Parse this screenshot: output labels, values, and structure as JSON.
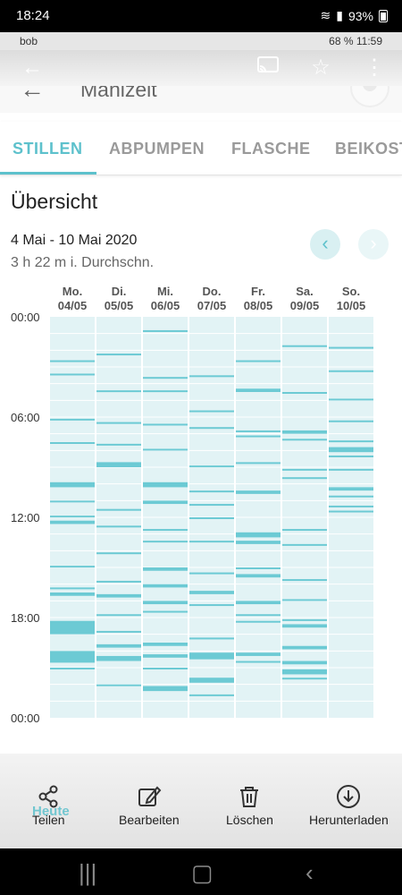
{
  "system_status": {
    "time": "18:24",
    "battery": "93%"
  },
  "inner_status": {
    "left": "bob",
    "right": "68 % 11:59"
  },
  "header": {
    "title": "Mahlzeit"
  },
  "tabs": [
    {
      "label": "STILLEN",
      "active": true
    },
    {
      "label": "ABPUMPEN",
      "active": false
    },
    {
      "label": "FLASCHE",
      "active": false
    },
    {
      "label": "BEIKOST",
      "active": false
    }
  ],
  "overview": {
    "title": "Übersicht",
    "date_range": "4 Mai - 10 Mai 2020",
    "average": "3 h 22 m i. Durchschn."
  },
  "chart_data": {
    "type": "timeline",
    "y_ticks": [
      "00:00",
      "06:00",
      "12:00",
      "18:00",
      "00:00"
    ],
    "days": [
      {
        "weekday": "Mo.",
        "date": "04/05",
        "sessions": [
          [
            2.6,
            2.6
          ],
          [
            3.4,
            3.5
          ],
          [
            6.1,
            6.2
          ],
          [
            7.5,
            7.6
          ],
          [
            9.9,
            10.2
          ],
          [
            11.0,
            11.1
          ],
          [
            11.9,
            12.0
          ],
          [
            12.2,
            12.4
          ],
          [
            14.9,
            15.0
          ],
          [
            16.2,
            16.3
          ],
          [
            16.5,
            16.7
          ],
          [
            18.2,
            19.0
          ],
          [
            20.0,
            20.7
          ],
          [
            21.0,
            21.1
          ]
        ]
      },
      {
        "weekday": "Di.",
        "date": "05/05",
        "sessions": [
          [
            2.2,
            2.3
          ],
          [
            4.4,
            4.5
          ],
          [
            6.3,
            6.4
          ],
          [
            7.6,
            7.7
          ],
          [
            8.7,
            9.0
          ],
          [
            11.5,
            11.6
          ],
          [
            12.5,
            12.6
          ],
          [
            14.1,
            14.2
          ],
          [
            15.8,
            15.9
          ],
          [
            16.6,
            16.8
          ],
          [
            17.8,
            17.9
          ],
          [
            18.8,
            18.9
          ],
          [
            19.6,
            19.8
          ],
          [
            20.3,
            20.6
          ],
          [
            22.0,
            22.1
          ]
        ]
      },
      {
        "weekday": "Mi.",
        "date": "06/05",
        "sessions": [
          [
            0.8,
            0.9
          ],
          [
            3.6,
            3.7
          ],
          [
            4.4,
            4.5
          ],
          [
            6.4,
            6.5
          ],
          [
            7.9,
            8.0
          ],
          [
            9.9,
            10.2
          ],
          [
            11.0,
            11.2
          ],
          [
            12.7,
            12.8
          ],
          [
            13.4,
            13.5
          ],
          [
            15.0,
            15.2
          ],
          [
            16.0,
            16.2
          ],
          [
            17.0,
            17.2
          ],
          [
            17.6,
            17.7
          ],
          [
            19.5,
            19.7
          ],
          [
            20.2,
            20.4
          ],
          [
            21.0,
            21.1
          ],
          [
            22.1,
            22.4
          ]
        ]
      },
      {
        "weekday": "Do.",
        "date": "07/05",
        "sessions": [
          [
            3.5,
            3.6
          ],
          [
            5.6,
            5.7
          ],
          [
            6.6,
            6.7
          ],
          [
            8.9,
            9.0
          ],
          [
            10.4,
            10.5
          ],
          [
            11.2,
            11.3
          ],
          [
            12.0,
            12.1
          ],
          [
            13.4,
            13.5
          ],
          [
            15.3,
            15.4
          ],
          [
            16.4,
            16.6
          ],
          [
            17.2,
            17.3
          ],
          [
            19.2,
            19.3
          ],
          [
            20.1,
            20.5
          ],
          [
            21.6,
            21.9
          ],
          [
            22.6,
            22.7
          ]
        ]
      },
      {
        "weekday": "Fr.",
        "date": "08/05",
        "sessions": [
          [
            2.6,
            2.7
          ],
          [
            4.3,
            4.5
          ],
          [
            6.8,
            6.9
          ],
          [
            7.1,
            7.2
          ],
          [
            8.7,
            8.8
          ],
          [
            10.4,
            10.6
          ],
          [
            12.9,
            13.2
          ],
          [
            13.4,
            13.6
          ],
          [
            15.0,
            15.1
          ],
          [
            15.4,
            15.6
          ],
          [
            17.0,
            17.2
          ],
          [
            17.8,
            17.9
          ],
          [
            18.2,
            18.3
          ],
          [
            20.1,
            20.3
          ],
          [
            20.6,
            20.7
          ]
        ]
      },
      {
        "weekday": "Sa.",
        "date": "09/05",
        "sessions": [
          [
            1.7,
            1.8
          ],
          [
            4.5,
            4.6
          ],
          [
            6.8,
            7.0
          ],
          [
            7.3,
            7.4
          ],
          [
            9.1,
            9.2
          ],
          [
            9.6,
            9.7
          ],
          [
            12.7,
            12.8
          ],
          [
            13.6,
            13.7
          ],
          [
            15.7,
            15.8
          ],
          [
            16.9,
            17.0
          ],
          [
            18.1,
            18.2
          ],
          [
            18.4,
            18.6
          ],
          [
            19.7,
            19.9
          ],
          [
            20.6,
            20.8
          ],
          [
            21.1,
            21.4
          ],
          [
            21.6,
            21.7
          ]
        ]
      },
      {
        "weekday": "So.",
        "date": "10/05",
        "sessions": [
          [
            1.8,
            1.9
          ],
          [
            3.2,
            3.3
          ],
          [
            4.9,
            5.0
          ],
          [
            6.2,
            6.3
          ],
          [
            7.4,
            7.5
          ],
          [
            7.8,
            8.1
          ],
          [
            8.3,
            8.4
          ],
          [
            9.1,
            9.2
          ],
          [
            10.2,
            10.4
          ],
          [
            10.7,
            10.8
          ],
          [
            11.3,
            11.4
          ],
          [
            11.6,
            11.7
          ]
        ]
      }
    ]
  },
  "actions": [
    {
      "label": "Teilen",
      "icon": "share-icon"
    },
    {
      "label": "Bearbeiten",
      "icon": "edit-icon"
    },
    {
      "label": "Löschen",
      "icon": "trash-icon"
    },
    {
      "label": "Herunterladen",
      "icon": "download-icon"
    }
  ],
  "ghost_label": "Heute",
  "colors": {
    "accent": "#5dc1cc",
    "column_bg": "#e2f3f5",
    "bar": "#6ccad4"
  }
}
